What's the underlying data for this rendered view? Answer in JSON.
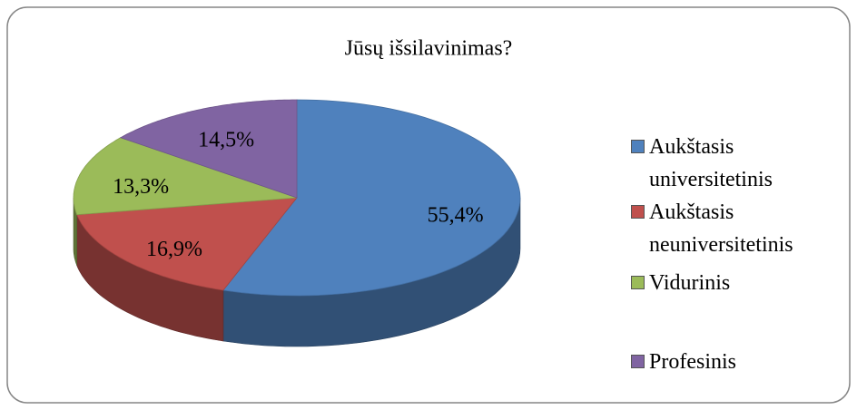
{
  "chart_data": {
    "type": "pie",
    "title": "Jūsų išsilavinimas?",
    "categories": [
      "Aukštasis universitetinis",
      "Aukštasis neuniversitetinis",
      "Vidurinis",
      "Profesinis"
    ],
    "values": [
      55.4,
      16.9,
      13.3,
      14.5
    ],
    "value_labels": [
      "55,4%",
      "16,9%",
      "13,3%",
      "14,5%"
    ],
    "colors": [
      "#4f81bd",
      "#c0504d",
      "#9bbb59",
      "#8064a2"
    ],
    "legend": "right"
  }
}
